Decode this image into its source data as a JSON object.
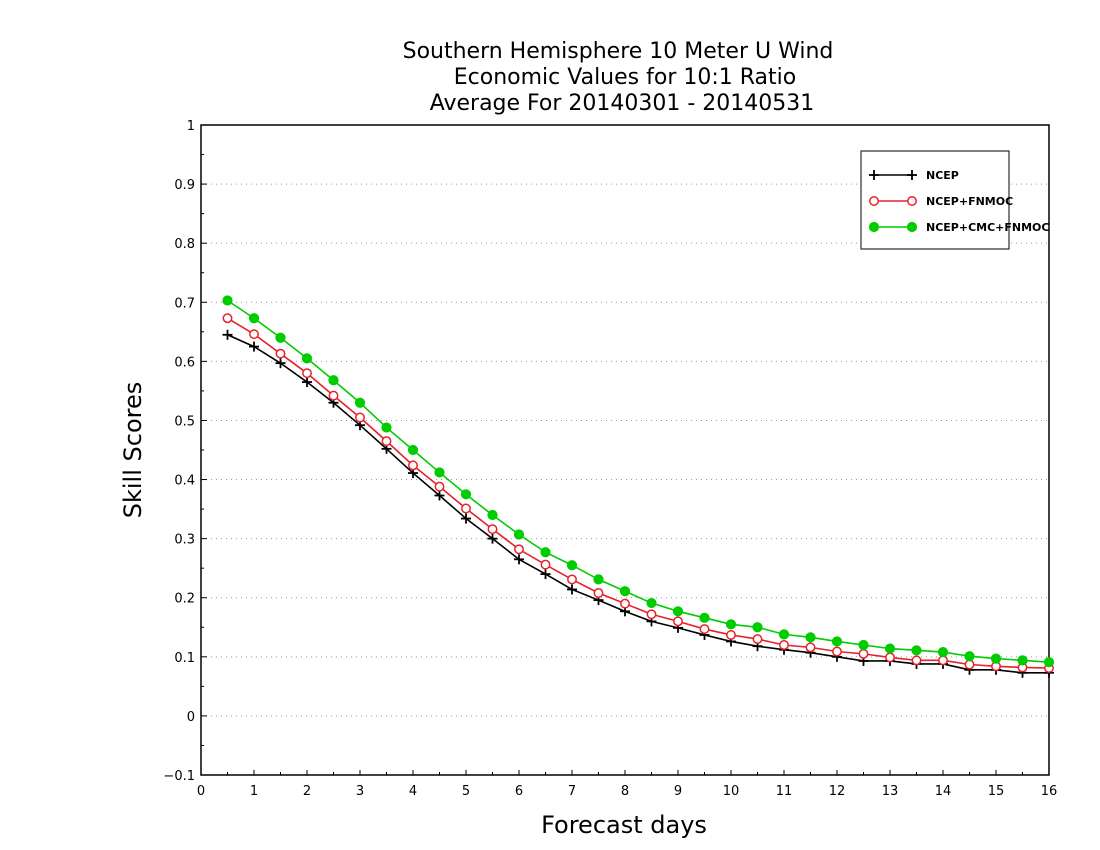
{
  "chart_data": {
    "type": "line",
    "title_lines": [
      "Southern Hemisphere 10 Meter U Wind",
      "Economic Values for 10:1 Ratio",
      "Average For 20140301 - 20140531"
    ],
    "xlabel": "Forecast days",
    "ylabel": "Skill Scores",
    "xlim": [
      0,
      16
    ],
    "ylim": [
      -0.1,
      1
    ],
    "xticks": [
      "0",
      "1",
      "2",
      "3",
      "4",
      "5",
      "6",
      "7",
      "8",
      "9",
      "10",
      "11",
      "12",
      "13",
      "14",
      "15",
      "16"
    ],
    "yticks": [
      "-0.1",
      "0",
      "0.1",
      "0.2",
      "0.3",
      "0.4",
      "0.5",
      "0.6",
      "0.7",
      "0.8",
      "0.9",
      "1"
    ],
    "grid": "horizontal dotted",
    "legend_position": "top-right",
    "x": [
      0.5,
      1,
      1.5,
      2,
      2.5,
      3,
      3.5,
      4,
      4.5,
      5,
      5.5,
      6,
      6.5,
      7,
      7.5,
      8,
      8.5,
      9,
      9.5,
      10,
      10.5,
      11,
      11.5,
      12,
      12.5,
      13,
      13.5,
      14,
      14.5,
      15,
      15.5,
      16
    ],
    "series": [
      {
        "name": "NCEP",
        "color": "#000000",
        "marker": "plus",
        "values": [
          0.645,
          0.625,
          0.597,
          0.565,
          0.53,
          0.492,
          0.452,
          0.411,
          0.373,
          0.334,
          0.3,
          0.265,
          0.24,
          0.214,
          0.196,
          0.177,
          0.16,
          0.149,
          0.137,
          0.126,
          0.118,
          0.112,
          0.107,
          0.1,
          0.093,
          0.093,
          0.088,
          0.088,
          0.078,
          0.078,
          0.073,
          0.073
        ]
      },
      {
        "name": "NCEP+FNMOC",
        "color": "#e8202a",
        "marker": "open-circle",
        "values": [
          0.673,
          0.646,
          0.613,
          0.58,
          0.542,
          0.505,
          0.465,
          0.424,
          0.388,
          0.351,
          0.316,
          0.282,
          0.256,
          0.231,
          0.208,
          0.19,
          0.172,
          0.16,
          0.147,
          0.137,
          0.13,
          0.12,
          0.116,
          0.109,
          0.105,
          0.099,
          0.094,
          0.094,
          0.087,
          0.084,
          0.082,
          0.081
        ]
      },
      {
        "name": "NCEP+CMC+FNMOC",
        "color": "#00cc00",
        "marker": "filled-circle",
        "values": [
          0.703,
          0.673,
          0.64,
          0.605,
          0.568,
          0.53,
          0.488,
          0.45,
          0.412,
          0.375,
          0.34,
          0.307,
          0.277,
          0.255,
          0.231,
          0.211,
          0.191,
          0.177,
          0.166,
          0.155,
          0.15,
          0.138,
          0.133,
          0.126,
          0.12,
          0.114,
          0.111,
          0.108,
          0.101,
          0.097,
          0.094,
          0.091
        ]
      }
    ]
  }
}
